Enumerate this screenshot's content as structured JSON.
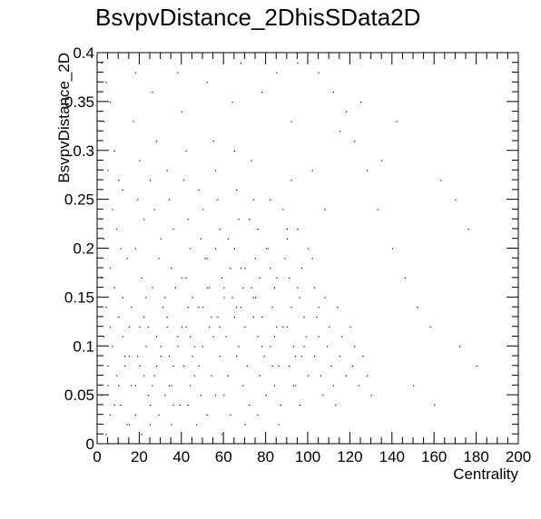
{
  "chart_data": {
    "type": "scatter",
    "title": "BsvpvDistance_2DhisSData2D",
    "xlabel": "Centrality",
    "ylabel": "BsvpvDistance_2D",
    "xlim": [
      0,
      200
    ],
    "ylim": [
      0,
      0.4
    ],
    "x_ticks": [
      "0",
      "20",
      "40",
      "60",
      "80",
      "100",
      "120",
      "140",
      "160",
      "180",
      "200"
    ],
    "y_ticks": [
      "0",
      "0.05",
      "0.1",
      "0.15",
      "0.2",
      "0.25",
      "0.3",
      "0.35",
      "0.4"
    ],
    "grid": false,
    "legend": "none",
    "colors": {
      "points": "#000000",
      "axes": "#000000",
      "background": "#ffffff"
    },
    "series": [
      {
        "values": [
          [
            2,
            0.39
          ],
          [
            4,
            0.37
          ],
          [
            6,
            0.35
          ],
          [
            3,
            0.33
          ],
          [
            8,
            0.3
          ],
          [
            5,
            0.28
          ],
          [
            10,
            0.27
          ],
          [
            12,
            0.26
          ],
          [
            7,
            0.24
          ],
          [
            9,
            0.22
          ],
          [
            3,
            0.21
          ],
          [
            11,
            0.2
          ],
          [
            6,
            0.18
          ],
          [
            14,
            0.19
          ],
          [
            2,
            0.17
          ],
          [
            8,
            0.16
          ],
          [
            12,
            0.15
          ],
          [
            4,
            0.14
          ],
          [
            10,
            0.13
          ],
          [
            15,
            0.12
          ],
          [
            3,
            0.11
          ],
          [
            7,
            0.1
          ],
          [
            13,
            0.09
          ],
          [
            5,
            0.08
          ],
          [
            9,
            0.07
          ],
          [
            16,
            0.06
          ],
          [
            2,
            0.05
          ],
          [
            11,
            0.04
          ],
          [
            6,
            0.03
          ],
          [
            14,
            0.02
          ],
          [
            4,
            0.01
          ],
          [
            18,
            0.38
          ],
          [
            17,
            0.33
          ],
          [
            20,
            0.29
          ],
          [
            19,
            0.25
          ],
          [
            22,
            0.23
          ],
          [
            18,
            0.2
          ],
          [
            21,
            0.17
          ],
          [
            23,
            0.15
          ],
          [
            20,
            0.12
          ],
          [
            19,
            0.09
          ],
          [
            22,
            0.07
          ],
          [
            24,
            0.05
          ],
          [
            18,
            0.03
          ],
          [
            21,
            0.01
          ],
          [
            26,
            0.36
          ],
          [
            28,
            0.31
          ],
          [
            25,
            0.27
          ],
          [
            27,
            0.24
          ],
          [
            30,
            0.21
          ],
          [
            29,
            0.19
          ],
          [
            26,
            0.16
          ],
          [
            31,
            0.14
          ],
          [
            28,
            0.11
          ],
          [
            30,
            0.09
          ],
          [
            27,
            0.07
          ],
          [
            32,
            0.05
          ],
          [
            29,
            0.03
          ],
          [
            25,
            0.02
          ],
          [
            33,
            0.28
          ],
          [
            34,
            0.25
          ],
          [
            36,
            0.22
          ],
          [
            35,
            0.18
          ],
          [
            37,
            0.16
          ],
          [
            33,
            0.13
          ],
          [
            38,
            0.11
          ],
          [
            36,
            0.08
          ],
          [
            34,
            0.06
          ],
          [
            39,
            0.04
          ],
          [
            35,
            0.02
          ],
          [
            40,
            0.34
          ],
          [
            42,
            0.3
          ],
          [
            41,
            0.27
          ],
          [
            43,
            0.23
          ],
          [
            44,
            0.2
          ],
          [
            40,
            0.17
          ],
          [
            45,
            0.15
          ],
          [
            42,
            0.12
          ],
          [
            46,
            0.1
          ],
          [
            41,
            0.08
          ],
          [
            44,
            0.06
          ],
          [
            43,
            0.04
          ],
          [
            47,
            0.02
          ],
          [
            48,
            0.26
          ],
          [
            50,
            0.24
          ],
          [
            49,
            0.21
          ],
          [
            51,
            0.19
          ],
          [
            52,
            0.16
          ],
          [
            48,
            0.14
          ],
          [
            53,
            0.12
          ],
          [
            50,
            0.1
          ],
          [
            54,
            0.07
          ],
          [
            49,
            0.05
          ],
          [
            52,
            0.03
          ],
          [
            55,
            0.31
          ],
          [
            56,
            0.28
          ],
          [
            57,
            0.25
          ],
          [
            58,
            0.22
          ],
          [
            56,
            0.2
          ],
          [
            59,
            0.17
          ],
          [
            60,
            0.15
          ],
          [
            57,
            0.13
          ],
          [
            61,
            0.11
          ],
          [
            58,
            0.09
          ],
          [
            62,
            0.07
          ],
          [
            60,
            0.05
          ],
          [
            63,
            0.03
          ],
          [
            59,
            0.01
          ],
          [
            64,
            0.35
          ],
          [
            65,
            0.3
          ],
          [
            66,
            0.26
          ],
          [
            67,
            0.23
          ],
          [
            65,
            0.2
          ],
          [
            68,
            0.18
          ],
          [
            69,
            0.16
          ],
          [
            66,
            0.14
          ],
          [
            70,
            0.12
          ],
          [
            67,
            0.1
          ],
          [
            71,
            0.08
          ],
          [
            69,
            0.06
          ],
          [
            72,
            0.04
          ],
          [
            70,
            0.02
          ],
          [
            73,
            0.29
          ],
          [
            74,
            0.25
          ],
          [
            76,
            0.22
          ],
          [
            75,
            0.19
          ],
          [
            77,
            0.17
          ],
          [
            74,
            0.15
          ],
          [
            78,
            0.13
          ],
          [
            76,
            0.11
          ],
          [
            79,
            0.09
          ],
          [
            77,
            0.07
          ],
          [
            80,
            0.05
          ],
          [
            81,
            0.2
          ],
          [
            82,
            0.18
          ],
          [
            84,
            0.16
          ],
          [
            83,
            0.14
          ],
          [
            85,
            0.12
          ],
          [
            82,
            0.1
          ],
          [
            86,
            0.08
          ],
          [
            84,
            0.06
          ],
          [
            87,
            0.04
          ],
          [
            88,
            0.24
          ],
          [
            90,
            0.21
          ],
          [
            89,
            0.19
          ],
          [
            91,
            0.17
          ],
          [
            92,
            0.14
          ],
          [
            90,
            0.12
          ],
          [
            93,
            0.1
          ],
          [
            91,
            0.08
          ],
          [
            94,
            0.06
          ],
          [
            95,
            0.22
          ],
          [
            97,
            0.18
          ],
          [
            96,
            0.15
          ],
          [
            98,
            0.13
          ],
          [
            99,
            0.11
          ],
          [
            97,
            0.09
          ],
          [
            100,
            0.07
          ],
          [
            102,
            0.19
          ],
          [
            103,
            0.16
          ],
          [
            104,
            0.13
          ],
          [
            105,
            0.11
          ],
          [
            103,
            0.09
          ],
          [
            106,
            0.07
          ],
          [
            107,
            0.05
          ],
          [
            108,
            0.15
          ],
          [
            110,
            0.12
          ],
          [
            109,
            0.1
          ],
          [
            111,
            0.08
          ],
          [
            112,
            0.06
          ],
          [
            114,
            0.14
          ],
          [
            116,
            0.11
          ],
          [
            115,
            0.09
          ],
          [
            118,
            0.07
          ],
          [
            120,
            0.12
          ],
          [
            122,
            0.1
          ],
          [
            121,
            0.08
          ],
          [
            124,
            0.06
          ],
          [
            126,
            0.09
          ],
          [
            128,
            0.07
          ],
          [
            130,
            0.05
          ],
          [
            85,
            0.38
          ],
          [
            95,
            0.39
          ],
          [
            105,
            0.38
          ],
          [
            112,
            0.36
          ],
          [
            118,
            0.34
          ],
          [
            122,
            0.31
          ],
          [
            128,
            0.28
          ],
          [
            133,
            0.24
          ],
          [
            140,
            0.2
          ],
          [
            146,
            0.17
          ],
          [
            152,
            0.14
          ],
          [
            158,
            0.12
          ],
          [
            163,
            0.27
          ],
          [
            170,
            0.25
          ],
          [
            176,
            0.22
          ],
          [
            150,
            0.06
          ],
          [
            160,
            0.04
          ],
          [
            172,
            0.1
          ],
          [
            180,
            0.08
          ],
          [
            142,
            0.33
          ],
          [
            135,
            0.29
          ],
          [
            125,
            0.35
          ],
          [
            115,
            0.32
          ],
          [
            102,
            0.28
          ],
          [
            92,
            0.33
          ],
          [
            78,
            0.36
          ],
          [
            68,
            0.39
          ],
          [
            52,
            0.37
          ],
          [
            38,
            0.38
          ],
          [
            15,
            0.02
          ],
          [
            25,
            0.04
          ],
          [
            35,
            0.06
          ],
          [
            45,
            0.09
          ],
          [
            55,
            0.11
          ],
          [
            65,
            0.13
          ],
          [
            75,
            0.15
          ],
          [
            85,
            0.17
          ],
          [
            95,
            0.16
          ],
          [
            105,
            0.14
          ],
          [
            10,
            0.06
          ],
          [
            20,
            0.08
          ],
          [
            30,
            0.1
          ],
          [
            40,
            0.12
          ],
          [
            50,
            0.14
          ],
          [
            60,
            0.16
          ],
          [
            70,
            0.18
          ],
          [
            80,
            0.2
          ],
          [
            90,
            0.22
          ],
          [
            100,
            0.2
          ],
          [
            12,
            0.11
          ],
          [
            22,
            0.13
          ],
          [
            32,
            0.15
          ],
          [
            42,
            0.17
          ],
          [
            52,
            0.19
          ],
          [
            62,
            0.21
          ],
          [
            72,
            0.23
          ],
          [
            82,
            0.25
          ],
          [
            92,
            0.27
          ],
          [
            108,
            0.24
          ],
          [
            6,
            0.12
          ],
          [
            16,
            0.14
          ],
          [
            26,
            0.06
          ],
          [
            36,
            0.04
          ],
          [
            46,
            0.07
          ],
          [
            56,
            0.05
          ],
          [
            66,
            0.09
          ],
          [
            76,
            0.03
          ],
          [
            86,
            0.02
          ],
          [
            96,
            0.04
          ],
          [
            8,
            0.04
          ],
          [
            18,
            0.06
          ],
          [
            28,
            0.08
          ],
          [
            38,
            0.1
          ],
          [
            48,
            0.08
          ],
          [
            58,
            0.12
          ],
          [
            68,
            0.14
          ],
          [
            78,
            0.1
          ],
          [
            88,
            0.12
          ],
          [
            98,
            0.1
          ],
          [
            13,
            0.08
          ],
          [
            23,
            0.1
          ],
          [
            33,
            0.12
          ],
          [
            43,
            0.14
          ],
          [
            53,
            0.16
          ],
          [
            63,
            0.18
          ],
          [
            73,
            0.16
          ],
          [
            83,
            0.08
          ],
          [
            93,
            0.06
          ],
          [
            113,
            0.04
          ],
          [
            5,
            0.06
          ],
          [
            15,
            0.09
          ],
          [
            24,
            0.12
          ],
          [
            34,
            0.09
          ],
          [
            44,
            0.11
          ],
          [
            54,
            0.13
          ],
          [
            64,
            0.15
          ],
          [
            74,
            0.13
          ],
          [
            84,
            0.11
          ],
          [
            94,
            0.09
          ]
        ]
      }
    ]
  }
}
